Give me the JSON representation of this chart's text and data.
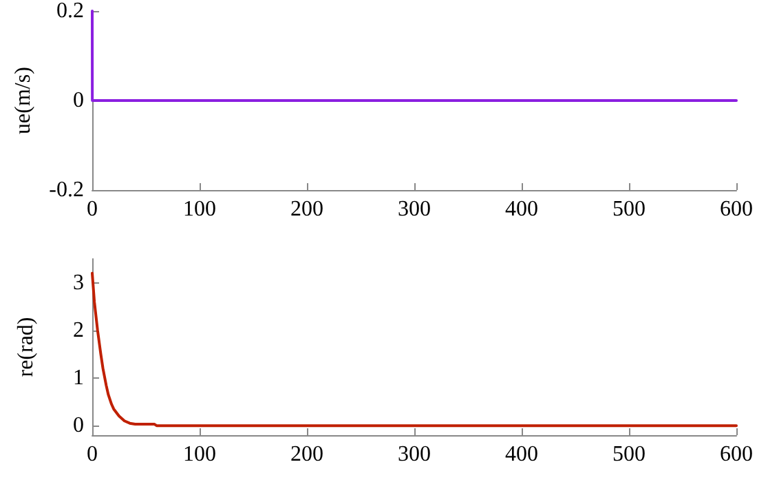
{
  "chart_data": [
    {
      "type": "line",
      "ylabel": "ue(m/s)",
      "x": [
        0,
        0.1,
        600
      ],
      "series": [
        {
          "color": "#8b1fe0",
          "values": [
            0.2,
            0,
            0
          ]
        }
      ],
      "xlim": [
        0,
        600
      ],
      "xticks": [
        0,
        100,
        200,
        300,
        400,
        500,
        600
      ],
      "ylim": [
        -0.2,
        0.2
      ],
      "yticks": [
        -0.2,
        0,
        0.2
      ],
      "grid": false,
      "marker": "none"
    },
    {
      "type": "line",
      "ylabel": "re(rad)",
      "x": [
        0,
        2,
        5,
        8,
        10,
        13,
        15,
        18,
        20,
        25,
        30,
        35,
        40,
        50,
        58,
        60,
        600
      ],
      "series": [
        {
          "color": "#c02000",
          "values": [
            3.2,
            2.6,
            2.0,
            1.5,
            1.2,
            0.85,
            0.65,
            0.45,
            0.35,
            0.2,
            0.1,
            0.05,
            0.03,
            0.03,
            0.03,
            0,
            0
          ]
        }
      ],
      "xlim": [
        0,
        600
      ],
      "xticks": [
        0,
        100,
        200,
        300,
        400,
        500,
        600
      ],
      "ylim": [
        -0.2,
        3.5
      ],
      "yticks": [
        0,
        1,
        2,
        3
      ],
      "grid": false,
      "marker": "none"
    }
  ]
}
